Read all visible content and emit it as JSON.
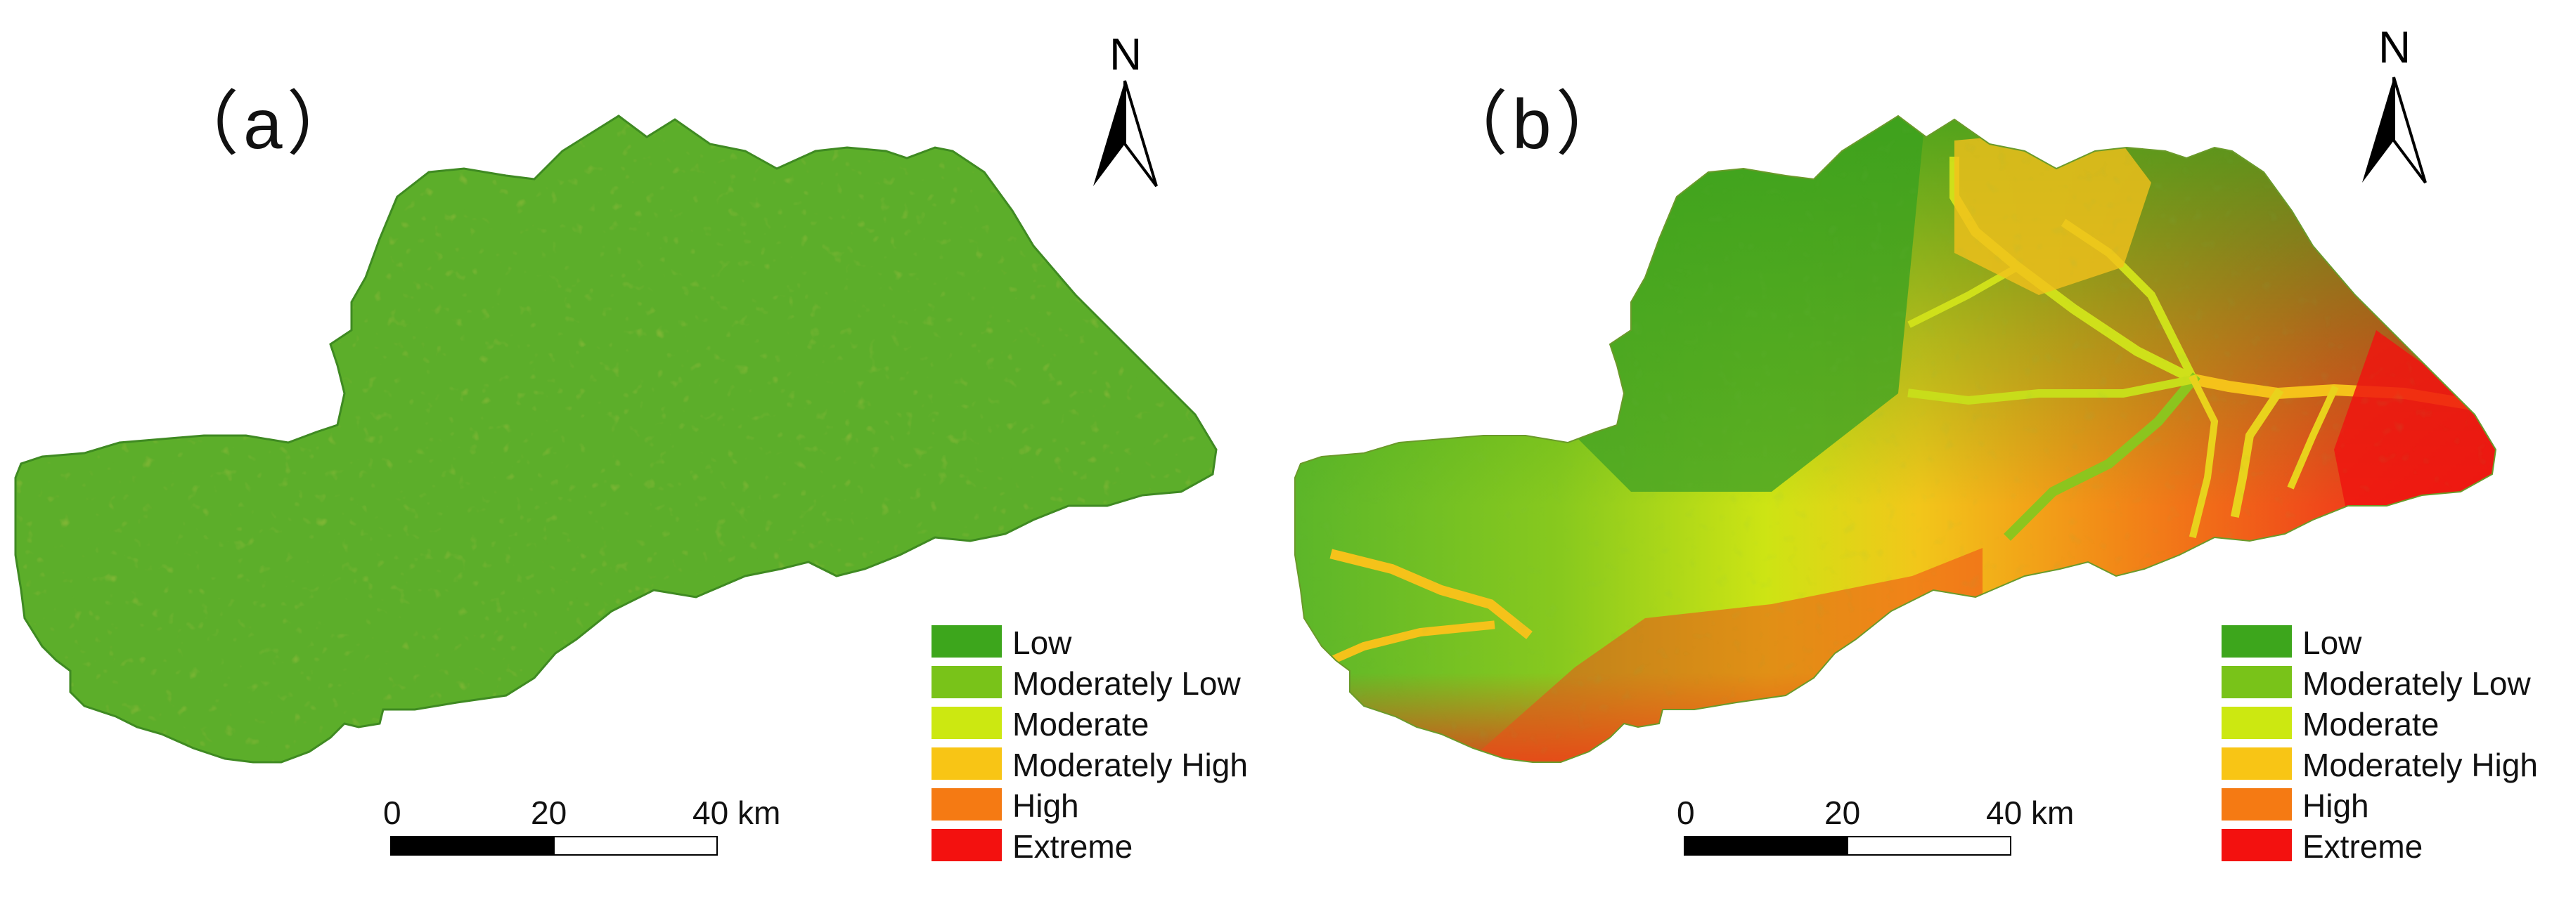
{
  "panels": [
    {
      "id": "a",
      "label": "（a）",
      "north_label": "N",
      "scale": {
        "ticks": [
          "0",
          "20",
          "40 km"
        ]
      },
      "legend": [
        {
          "label": "Low",
          "color": "#3da61c"
        },
        {
          "label": "Moderately Low",
          "color": "#79c319"
        },
        {
          "label": "Moderate",
          "color": "#cce811"
        },
        {
          "label": "Moderately High",
          "color": "#f8c515"
        },
        {
          "label": "High",
          "color": "#f57a13"
        },
        {
          "label": "Extreme",
          "color": "#f3110f"
        }
      ]
    },
    {
      "id": "b",
      "label": "（b）",
      "north_label": "N",
      "scale": {
        "ticks": [
          "0",
          "20",
          "40 km"
        ]
      },
      "legend": [
        {
          "label": "Low",
          "color": "#3da61c"
        },
        {
          "label": "Moderately Low",
          "color": "#79c319"
        },
        {
          "label": "Moderate",
          "color": "#cce811"
        },
        {
          "label": "Moderately High",
          "color": "#f8c515"
        },
        {
          "label": "High",
          "color": "#f57a13"
        },
        {
          "label": "Extreme",
          "color": "#f3110f"
        }
      ]
    }
  ]
}
